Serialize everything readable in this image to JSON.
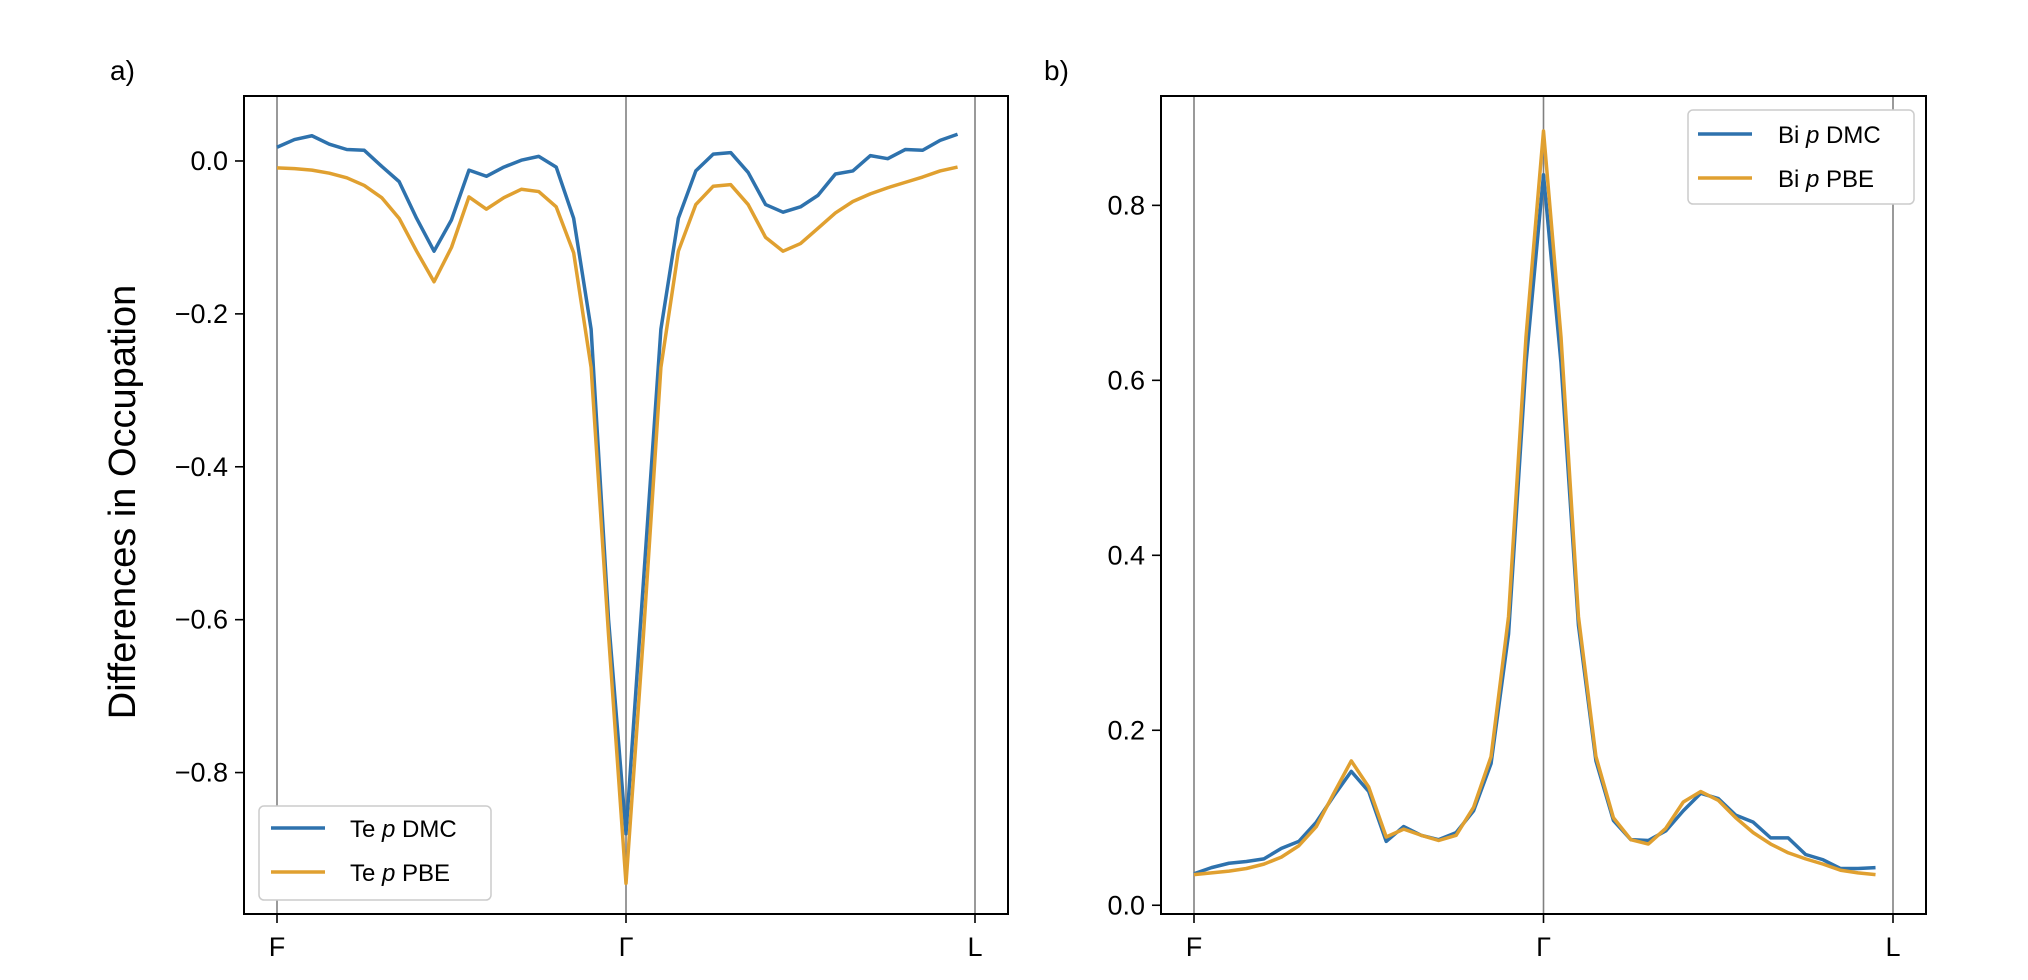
{
  "colors": {
    "dmc": "#2e72ad",
    "pbe": "#e0a030"
  },
  "chart_data": [
    {
      "type": "line",
      "panel_label": "a)",
      "ylabel": "Differences in Occupation",
      "xticks": [
        "F",
        "Γ",
        "L"
      ],
      "xlim": [
        0,
        40
      ],
      "ylim": [
        -0.985,
        0.085
      ],
      "yticks": [
        0.0,
        -0.2,
        -0.4,
        -0.6,
        -0.8
      ],
      "ytick_labels": [
        "0.0",
        "−0.2",
        "−0.4",
        "−0.6",
        "−0.8"
      ],
      "vlines": [
        0,
        20,
        40
      ],
      "legend_loc": "lower-left",
      "series": [
        {
          "name_prefix": "Te ",
          "name_orbital": "p",
          "name_suffix": " DMC",
          "color_key": "dmc",
          "values": [
            0.018,
            0.028,
            0.033,
            0.022,
            0.015,
            0.014,
            -0.007,
            -0.027,
            -0.075,
            -0.118,
            -0.077,
            -0.012,
            -0.02,
            -0.008,
            0.001,
            0.006,
            -0.008,
            -0.075,
            -0.22,
            -0.6,
            -0.88,
            -0.55,
            -0.22,
            -0.075,
            -0.013,
            0.009,
            0.011,
            -0.015,
            -0.057,
            -0.067,
            -0.06,
            -0.045,
            -0.017,
            -0.013,
            0.007,
            0.003,
            0.015,
            0.014,
            0.027,
            0.035
          ]
        },
        {
          "name_prefix": "Te ",
          "name_orbital": "p",
          "name_suffix": " PBE",
          "color_key": "pbe",
          "values": [
            -0.009,
            -0.01,
            -0.012,
            -0.016,
            -0.022,
            -0.032,
            -0.048,
            -0.075,
            -0.118,
            -0.158,
            -0.113,
            -0.047,
            -0.063,
            -0.048,
            -0.037,
            -0.04,
            -0.06,
            -0.12,
            -0.27,
            -0.62,
            -0.945,
            -0.62,
            -0.27,
            -0.118,
            -0.057,
            -0.033,
            -0.031,
            -0.057,
            -0.1,
            -0.118,
            -0.108,
            -0.088,
            -0.068,
            -0.053,
            -0.043,
            -0.035,
            -0.028,
            -0.021,
            -0.013,
            -0.008
          ]
        }
      ]
    },
    {
      "type": "line",
      "panel_label": "b)",
      "ylabel": "",
      "xticks": [
        "F",
        "Γ",
        "L"
      ],
      "xlim": [
        0,
        40
      ],
      "ylim": [
        -0.01,
        0.925
      ],
      "yticks": [
        0.0,
        0.2,
        0.4,
        0.6,
        0.8
      ],
      "ytick_labels": [
        "0.0",
        "0.2",
        "0.4",
        "0.6",
        "0.8"
      ],
      "vlines": [
        0,
        20,
        40
      ],
      "legend_loc": "upper-right",
      "series": [
        {
          "name_prefix": "Bi ",
          "name_orbital": "p",
          "name_suffix": " DMC",
          "color_key": "dmc",
          "values": [
            0.036,
            0.043,
            0.048,
            0.05,
            0.053,
            0.065,
            0.073,
            0.095,
            0.125,
            0.153,
            0.13,
            0.073,
            0.09,
            0.08,
            0.075,
            0.083,
            0.108,
            0.162,
            0.31,
            0.62,
            0.835,
            0.62,
            0.32,
            0.165,
            0.097,
            0.075,
            0.074,
            0.085,
            0.108,
            0.128,
            0.122,
            0.103,
            0.095,
            0.077,
            0.077,
            0.058,
            0.052,
            0.042,
            0.042,
            0.043
          ]
        },
        {
          "name_prefix": "Bi ",
          "name_orbital": "p",
          "name_suffix": " PBE",
          "color_key": "pbe",
          "values": [
            0.035,
            0.037,
            0.039,
            0.042,
            0.047,
            0.055,
            0.068,
            0.09,
            0.128,
            0.165,
            0.135,
            0.078,
            0.087,
            0.08,
            0.074,
            0.08,
            0.112,
            0.17,
            0.33,
            0.65,
            0.885,
            0.65,
            0.33,
            0.17,
            0.1,
            0.075,
            0.07,
            0.088,
            0.118,
            0.13,
            0.12,
            0.1,
            0.083,
            0.07,
            0.06,
            0.053,
            0.047,
            0.04,
            0.037,
            0.035
          ]
        }
      ]
    }
  ]
}
